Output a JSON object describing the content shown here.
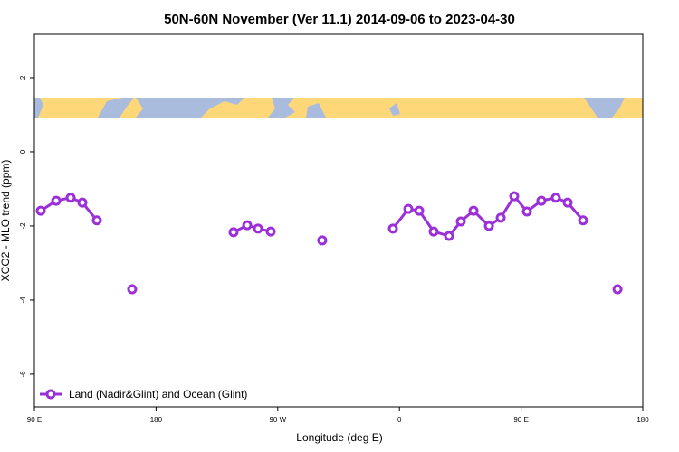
{
  "chart_data": {
    "type": "line",
    "title": "50N-60N November (Ver 11.1)   2014-09-06 to 2023-04-30",
    "x_label": "Longitude (deg E)",
    "y_label": "XCO2 - MLO trend (ppm)",
    "xlim": [
      90,
      540
    ],
    "ylim": [
      -6.88,
      3.17
    ],
    "xticks": [
      {
        "value": 90,
        "label": "90 E"
      },
      {
        "value": 180,
        "label": "180"
      },
      {
        "value": 270,
        "label": "90 W"
      },
      {
        "value": 360,
        "label": "0"
      },
      {
        "value": 450,
        "label": "90 E"
      },
      {
        "value": 540,
        "label": "180"
      }
    ],
    "yticks": [
      -6,
      -4,
      -2,
      0,
      2
    ],
    "legend": "bottom-left",
    "series": [
      {
        "name": "Land (Nadir&Glint) and Ocean (Glint)",
        "color": "#9b30d9",
        "x": [
          94.7,
          106.1,
          116.8,
          125.5,
          136.2,
          null,
          162.3,
          null,
          237.3,
          247.4,
          255.4,
          264.8,
          null,
          302.9,
          null,
          355.2,
          366.6,
          374.6,
          385.3,
          396.7,
          405.4,
          414.8,
          426.2,
          434.9,
          444.9,
          454.3,
          465.0,
          475.7,
          484.4,
          495.8,
          null,
          521.3
        ],
        "values": [
          -1.59,
          -1.32,
          -1.24,
          -1.37,
          -1.85,
          null,
          -3.71,
          null,
          -2.17,
          -1.98,
          -2.07,
          -2.15,
          null,
          -2.39,
          null,
          -2.07,
          -1.54,
          -1.59,
          -2.15,
          -2.27,
          -1.88,
          -1.59,
          -2.0,
          -1.78,
          -1.2,
          -1.61,
          -1.32,
          -1.24,
          -1.37,
          -1.85,
          null,
          -3.71
        ]
      }
    ]
  }
}
